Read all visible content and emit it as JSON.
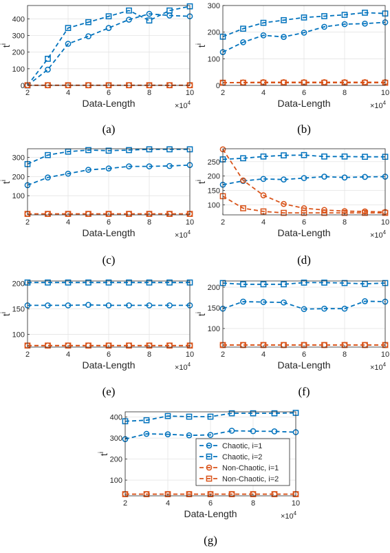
{
  "colors": {
    "chaotic": "#0072BD",
    "non_chaotic": "#D95319",
    "grid": "#e3e3e3",
    "axis": "#262626"
  },
  "legend": {
    "entries": [
      "Chaotic, i=1",
      "Chaotic, i=2",
      "Non-Chaotic, i=1",
      "Non-Chaotic, i=2"
    ]
  },
  "chart_data": [
    {
      "type": "line",
      "caption": "(a)",
      "xlabel": "Data-Length",
      "ylabel": "t",
      "ylabel_sup": "i",
      "x_exponent": "4",
      "x": [
        2,
        3,
        4,
        5,
        6,
        7,
        8,
        9,
        10
      ],
      "xlim": [
        2,
        10
      ],
      "xticks": [
        2,
        4,
        6,
        8,
        10
      ],
      "ylim": [
        0,
        480
      ],
      "yticks": [
        0,
        100,
        200,
        300,
        400
      ],
      "grid": true,
      "series": [
        {
          "group": "chaotic",
          "marker": "circle",
          "values": [
            0,
            95,
            250,
            295,
            345,
            395,
            430,
            420,
            415
          ]
        },
        {
          "group": "chaotic",
          "marker": "square",
          "values": [
            0,
            160,
            345,
            380,
            415,
            450,
            390,
            450,
            475
          ]
        },
        {
          "group": "non_chaotic",
          "marker": "circle",
          "values": [
            1,
            1,
            1,
            1,
            1,
            1,
            1,
            1,
            1
          ]
        },
        {
          "group": "non_chaotic",
          "marker": "square",
          "values": [
            1,
            1,
            1,
            1,
            1,
            1,
            1,
            1,
            1
          ]
        }
      ]
    },
    {
      "type": "line",
      "caption": "(b)",
      "xlabel": "Data-Length",
      "ylabel": "t",
      "ylabel_sup": "i",
      "x_exponent": "4",
      "x": [
        2,
        3,
        4,
        5,
        6,
        7,
        8,
        9,
        10
      ],
      "xlim": [
        2,
        10
      ],
      "xticks": [
        2,
        4,
        6,
        8,
        10
      ],
      "ylim": [
        0,
        300
      ],
      "yticks": [
        0,
        100,
        200,
        300
      ],
      "grid": true,
      "series": [
        {
          "group": "chaotic",
          "marker": "circle",
          "values": [
            125,
            162,
            188,
            182,
            198,
            220,
            230,
            232,
            237
          ]
        },
        {
          "group": "chaotic",
          "marker": "square",
          "values": [
            183,
            213,
            235,
            245,
            255,
            260,
            265,
            273,
            270
          ]
        },
        {
          "group": "non_chaotic",
          "marker": "circle",
          "values": [
            10,
            11,
            12,
            12,
            12,
            12,
            12,
            12,
            12
          ]
        },
        {
          "group": "non_chaotic",
          "marker": "square",
          "values": [
            10,
            10,
            10,
            10,
            10,
            10,
            10,
            10,
            10
          ]
        }
      ]
    },
    {
      "type": "line",
      "caption": "(c)",
      "xlabel": "Data-Length",
      "ylabel": "t",
      "ylabel_sup": "i",
      "x_exponent": "4",
      "x": [
        2,
        3,
        4,
        5,
        6,
        7,
        8,
        9,
        10
      ],
      "xlim": [
        2,
        10
      ],
      "xticks": [
        2,
        4,
        6,
        8,
        10
      ],
      "ylim": [
        0,
        345
      ],
      "yticks": [
        100,
        200,
        300
      ],
      "grid": true,
      "series": [
        {
          "group": "chaotic",
          "marker": "circle",
          "values": [
            155,
            195,
            215,
            235,
            242,
            253,
            253,
            255,
            260
          ]
        },
        {
          "group": "chaotic",
          "marker": "square",
          "values": [
            265,
            312,
            330,
            338,
            335,
            338,
            342,
            342,
            342
          ]
        },
        {
          "group": "non_chaotic",
          "marker": "circle",
          "values": [
            5,
            5,
            5,
            5,
            5,
            5,
            5,
            5,
            5
          ]
        },
        {
          "group": "non_chaotic",
          "marker": "square",
          "values": [
            5,
            5,
            5,
            5,
            5,
            5,
            5,
            5,
            5
          ]
        }
      ]
    },
    {
      "type": "line",
      "caption": "(d)",
      "xlabel": "Data-Length",
      "ylabel": "t",
      "ylabel_sup": "i",
      "x_exponent": "4",
      "x": [
        2,
        3,
        4,
        5,
        6,
        7,
        8,
        9,
        10
      ],
      "xlim": [
        2,
        10
      ],
      "xticks": [
        2,
        4,
        6,
        8,
        10
      ],
      "ylim": [
        65,
        295
      ],
      "yticks": [
        100,
        150,
        200,
        250
      ],
      "grid": true,
      "series": [
        {
          "group": "chaotic",
          "marker": "circle",
          "values": [
            170,
            183,
            190,
            188,
            193,
            198,
            195,
            197,
            198
          ]
        },
        {
          "group": "chaotic",
          "marker": "square",
          "values": [
            258,
            262,
            268,
            272,
            273,
            268,
            268,
            267,
            267
          ]
        },
        {
          "group": "non_chaotic",
          "marker": "circle",
          "values": [
            293,
            185,
            133,
            103,
            88,
            82,
            78,
            77,
            75
          ]
        },
        {
          "group": "non_chaotic",
          "marker": "square",
          "values": [
            130,
            88,
            77,
            72,
            72,
            72,
            72,
            72,
            72
          ]
        }
      ]
    },
    {
      "type": "line",
      "caption": "(e)",
      "xlabel": "Data-Length",
      "ylabel": "t",
      "ylabel_sup": "i",
      "x_exponent": "4",
      "x": [
        2,
        3,
        4,
        5,
        6,
        7,
        8,
        9,
        10
      ],
      "xlim": [
        2,
        10
      ],
      "xticks": [
        2,
        4,
        6,
        8,
        10
      ],
      "ylim": [
        75,
        205
      ],
      "yticks": [
        100,
        150,
        200
      ],
      "grid": true,
      "series": [
        {
          "group": "chaotic",
          "marker": "circle",
          "values": [
            157,
            157,
            157,
            158,
            157,
            157,
            157,
            157,
            157
          ]
        },
        {
          "group": "chaotic",
          "marker": "square",
          "values": [
            202,
            202,
            202,
            202,
            202,
            202,
            202,
            202,
            202
          ]
        },
        {
          "group": "non_chaotic",
          "marker": "circle",
          "values": [
            78,
            78,
            78,
            78,
            78,
            78,
            78,
            78,
            78
          ]
        },
        {
          "group": "non_chaotic",
          "marker": "square",
          "values": [
            78,
            78,
            78,
            78,
            78,
            78,
            78,
            78,
            78
          ]
        }
      ]
    },
    {
      "type": "line",
      "caption": "(f)",
      "xlabel": "Data-Length",
      "ylabel": "t",
      "ylabel_sup": "i",
      "x_exponent": "4",
      "x": [
        2,
        3,
        4,
        5,
        6,
        7,
        8,
        9,
        10
      ],
      "xlim": [
        2,
        10
      ],
      "xticks": [
        2,
        4,
        6,
        8,
        10
      ],
      "ylim": [
        55,
        215
      ],
      "yticks": [
        100,
        150,
        200
      ],
      "grid": true,
      "series": [
        {
          "group": "chaotic",
          "marker": "circle",
          "values": [
            148,
            165,
            164,
            163,
            147,
            148,
            148,
            166,
            165
          ]
        },
        {
          "group": "chaotic",
          "marker": "square",
          "values": [
            210,
            207,
            207,
            207,
            211,
            211,
            210,
            208,
            210
          ]
        },
        {
          "group": "non_chaotic",
          "marker": "circle",
          "values": [
            60,
            60,
            60,
            60,
            60,
            60,
            60,
            60,
            60
          ]
        },
        {
          "group": "non_chaotic",
          "marker": "square",
          "values": [
            60,
            60,
            60,
            60,
            60,
            60,
            60,
            60,
            60
          ]
        }
      ]
    },
    {
      "type": "line",
      "caption": "(g)",
      "xlabel": "Data-Length",
      "ylabel": "t",
      "ylabel_sup": "i",
      "x_exponent": "4",
      "x": [
        2,
        3,
        4,
        5,
        6,
        7,
        8,
        9,
        10
      ],
      "xlim": [
        2,
        10
      ],
      "xticks": [
        2,
        4,
        6,
        8,
        10
      ],
      "ylim": [
        25,
        425
      ],
      "yticks": [
        100,
        200,
        300,
        400
      ],
      "grid": true,
      "legend": "right",
      "series": [
        {
          "group": "chaotic",
          "marker": "circle",
          "name": "Chaotic, i=1",
          "values": [
            295,
            320,
            318,
            313,
            315,
            335,
            333,
            332,
            328
          ]
        },
        {
          "group": "chaotic",
          "marker": "square",
          "name": "Chaotic, i=2",
          "values": [
            380,
            385,
            405,
            402,
            402,
            418,
            418,
            418,
            420
          ]
        },
        {
          "group": "non_chaotic",
          "marker": "circle",
          "name": "Non-Chaotic, i=1",
          "values": [
            33,
            33,
            33,
            33,
            33,
            33,
            33,
            33,
            33
          ]
        },
        {
          "group": "non_chaotic",
          "marker": "square",
          "name": "Non-Chaotic, i=2",
          "values": [
            33,
            33,
            33,
            33,
            33,
            33,
            33,
            33,
            33
          ]
        }
      ]
    }
  ]
}
